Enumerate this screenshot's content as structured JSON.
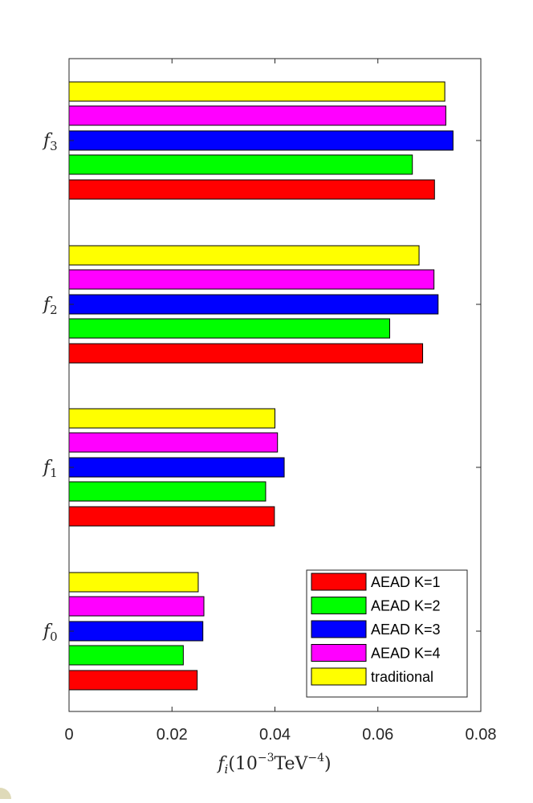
{
  "chart_data": {
    "type": "bar",
    "orientation": "horizontal",
    "categories": [
      "f0",
      "f1",
      "f2",
      "f3"
    ],
    "category_labels": [
      {
        "base": "f",
        "sub": "0"
      },
      {
        "base": "f",
        "sub": "1"
      },
      {
        "base": "f",
        "sub": "2"
      },
      {
        "base": "f",
        "sub": "3"
      }
    ],
    "series": [
      {
        "name": "AEAD K=1",
        "color": "#ff0000",
        "values": [
          0.0249,
          0.0399,
          0.0687,
          0.071
        ]
      },
      {
        "name": "AEAD K=2",
        "color": "#00ff00",
        "values": [
          0.0222,
          0.0382,
          0.0623,
          0.0667
        ]
      },
      {
        "name": "AEAD K=3",
        "color": "#0000ff",
        "values": [
          0.026,
          0.0418,
          0.0717,
          0.0746
        ]
      },
      {
        "name": "AEAD K=4",
        "color": "#ff00ff",
        "values": [
          0.0262,
          0.0405,
          0.0709,
          0.0732
        ]
      },
      {
        "name": "traditional",
        "color": "#ffff00",
        "values": [
          0.0251,
          0.04,
          0.068,
          0.073
        ]
      }
    ],
    "xlabel": {
      "base": "f",
      "sub": "i",
      "open": "(10",
      "exp1": "−3",
      "unit": "TeV",
      "exp2": "−4",
      "close": ")"
    },
    "xlim": [
      0,
      0.08
    ],
    "xticks": [
      "0",
      "0.02",
      "0.04",
      "0.06",
      "0.08"
    ],
    "xtick_values": [
      0,
      0.02,
      0.04,
      0.06,
      0.08
    ],
    "grid": false,
    "legend_position": "bottom-right"
  }
}
